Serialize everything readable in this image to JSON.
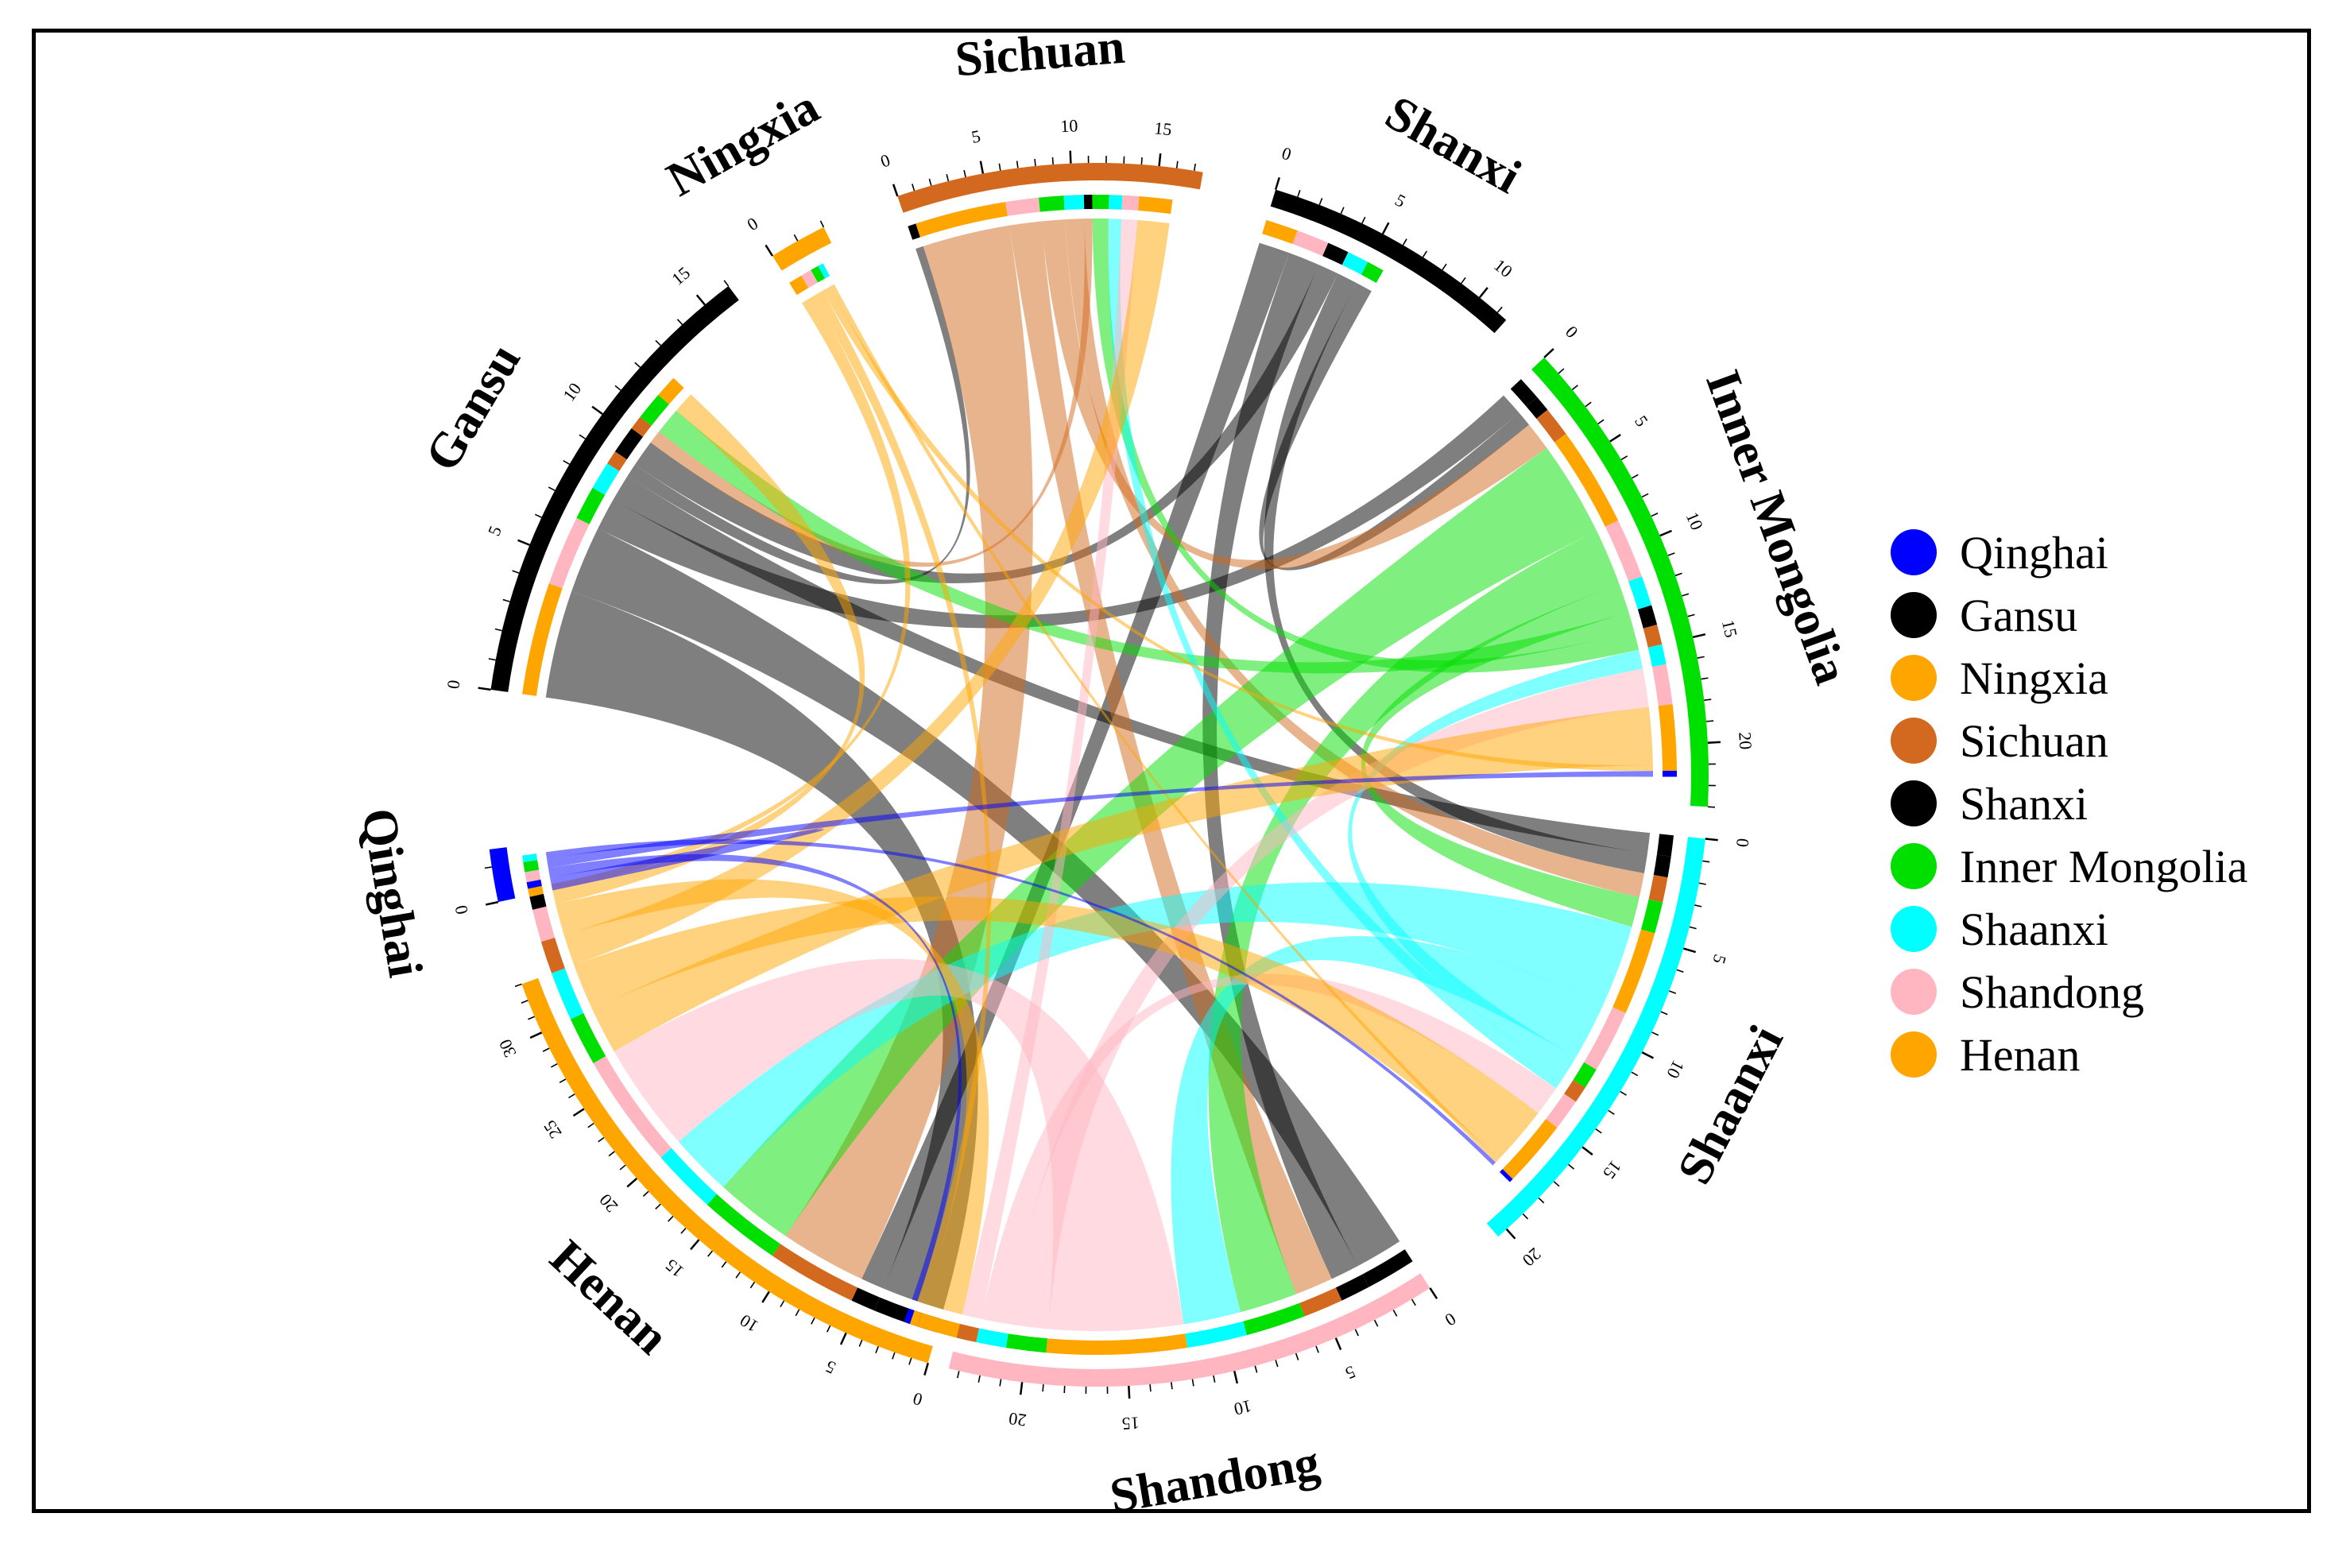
{
  "chart_data": {
    "type": "chord",
    "title": "",
    "sectors": [
      {
        "name": "Qinghai",
        "color": "#0000ff",
        "total": 1.5,
        "ticks": [
          0
        ]
      },
      {
        "name": "Gansu",
        "color": "#000000",
        "total": 16,
        "ticks": [
          0,
          5,
          10,
          15
        ]
      },
      {
        "name": "Ningxia",
        "color": "#ffa500",
        "total": 2,
        "ticks": [
          0
        ]
      },
      {
        "name": "Sichuan",
        "color": "#d2691e",
        "total": 17.5,
        "ticks": [
          0,
          5,
          10,
          15
        ]
      },
      {
        "name": "Shanxi",
        "color": "#000000",
        "total": 11.5,
        "ticks": [
          0,
          5,
          10
        ]
      },
      {
        "name": "Inner Mongolia",
        "color": "#00e000",
        "total": 23,
        "ticks": [
          0,
          5,
          10,
          15,
          20
        ]
      },
      {
        "name": "Shaanxi",
        "color": "#00ffff",
        "total": 20.5,
        "ticks": [
          0,
          5,
          10,
          15,
          20
        ]
      },
      {
        "name": "Shandong",
        "color": "#ffb6c1",
        "total": 23.5,
        "ticks": [
          0,
          5,
          10,
          15,
          20
        ]
      },
      {
        "name": "Henan",
        "color": "#ffa500",
        "total": 33,
        "ticks": [
          0,
          5,
          10,
          15,
          20,
          25,
          30
        ]
      }
    ],
    "links": [
      {
        "from": "Gansu",
        "to": "Henan",
        "value": 4
      },
      {
        "from": "Gansu",
        "to": "Shandong",
        "value": 2.5
      },
      {
        "from": "Gansu",
        "to": "Inner Mongolia",
        "value": 1.2
      },
      {
        "from": "Gansu",
        "to": "Shaanxi",
        "value": 1
      },
      {
        "from": "Gansu",
        "to": "Sichuan",
        "value": 0.5
      },
      {
        "from": "Shanxi",
        "to": "Henan",
        "value": 1.5
      },
      {
        "from": "Shanxi",
        "to": "Shandong",
        "value": 1.5
      },
      {
        "from": "Shanxi",
        "to": "Gansu",
        "value": 1
      },
      {
        "from": "Shanxi",
        "to": "Shaanxi",
        "value": 1
      },
      {
        "from": "Shanxi",
        "to": "Inner Mongolia",
        "value": 0.8
      },
      {
        "from": "Sichuan",
        "to": "Henan",
        "value": 5.5
      },
      {
        "from": "Sichuan",
        "to": "Shandong",
        "value": 2
      },
      {
        "from": "Sichuan",
        "to": "Inner Mongolia",
        "value": 1.5
      },
      {
        "from": "Sichuan",
        "to": "Shaanxi",
        "value": 1.2
      },
      {
        "from": "Sichuan",
        "to": "Gansu",
        "value": 0.5
      },
      {
        "from": "Inner Mongolia",
        "to": "Henan",
        "value": 5
      },
      {
        "from": "Inner Mongolia",
        "to": "Shandong",
        "value": 3
      },
      {
        "from": "Inner Mongolia",
        "to": "Shaanxi",
        "value": 1.5
      },
      {
        "from": "Inner Mongolia",
        "to": "Gansu",
        "value": 1
      },
      {
        "from": "Inner Mongolia",
        "to": "Sichuan",
        "value": 1
      },
      {
        "from": "Shaanxi",
        "to": "Henan",
        "value": 4
      },
      {
        "from": "Shaanxi",
        "to": "Shandong",
        "value": 3
      },
      {
        "from": "Shaanxi",
        "to": "Inner Mongolia",
        "value": 1
      },
      {
        "from": "Shaanxi",
        "to": "Sichuan",
        "value": 0.8
      },
      {
        "from": "Shandong",
        "to": "Henan",
        "value": 7
      },
      {
        "from": "Shandong",
        "to": "Inner Mongolia",
        "value": 2
      },
      {
        "from": "Shandong",
        "to": "Shaanxi",
        "value": 1.5
      },
      {
        "from": "Shandong",
        "to": "Sichuan",
        "value": 1
      },
      {
        "from": "Henan",
        "to": "Inner Mongolia",
        "value": 3
      },
      {
        "from": "Henan",
        "to": "Shaanxi",
        "value": 3
      },
      {
        "from": "Henan",
        "to": "Sichuan",
        "value": 2
      },
      {
        "from": "Henan",
        "to": "Shandong",
        "value": 2
      },
      {
        "from": "Henan",
        "to": "Gansu",
        "value": 0.8
      },
      {
        "from": "Ningxia",
        "to": "Henan",
        "value": 0.5
      },
      {
        "from": "Ningxia",
        "to": "Shandong",
        "value": 0.4
      },
      {
        "from": "Ningxia",
        "to": "Inner Mongolia",
        "value": 0.3
      },
      {
        "from": "Ningxia",
        "to": "Shaanxi",
        "value": 0.2
      },
      {
        "from": "Qinghai",
        "to": "Henan",
        "value": 0.4
      },
      {
        "from": "Qinghai",
        "to": "Shandong",
        "value": 0.3
      },
      {
        "from": "Qinghai",
        "to": "Inner Mongolia",
        "value": 0.3
      },
      {
        "from": "Qinghai",
        "to": "Shaanxi",
        "value": 0.2
      }
    ],
    "legend": {
      "placement": "right",
      "entries": [
        {
          "label": "Qinghai",
          "color": "#0000ff"
        },
        {
          "label": "Gansu",
          "color": "#000000"
        },
        {
          "label": "Ningxia",
          "color": "#ffa500"
        },
        {
          "label": "Sichuan",
          "color": "#d2691e"
        },
        {
          "label": "Shanxi",
          "color": "#000000"
        },
        {
          "label": "Inner Mongolia",
          "color": "#00e000"
        },
        {
          "label": "Shaanxi",
          "color": "#00ffff"
        },
        {
          "label": "Shandong",
          "color": "#ffb6c1"
        },
        {
          "label": "Henan",
          "color": "#ffa500"
        }
      ]
    }
  }
}
